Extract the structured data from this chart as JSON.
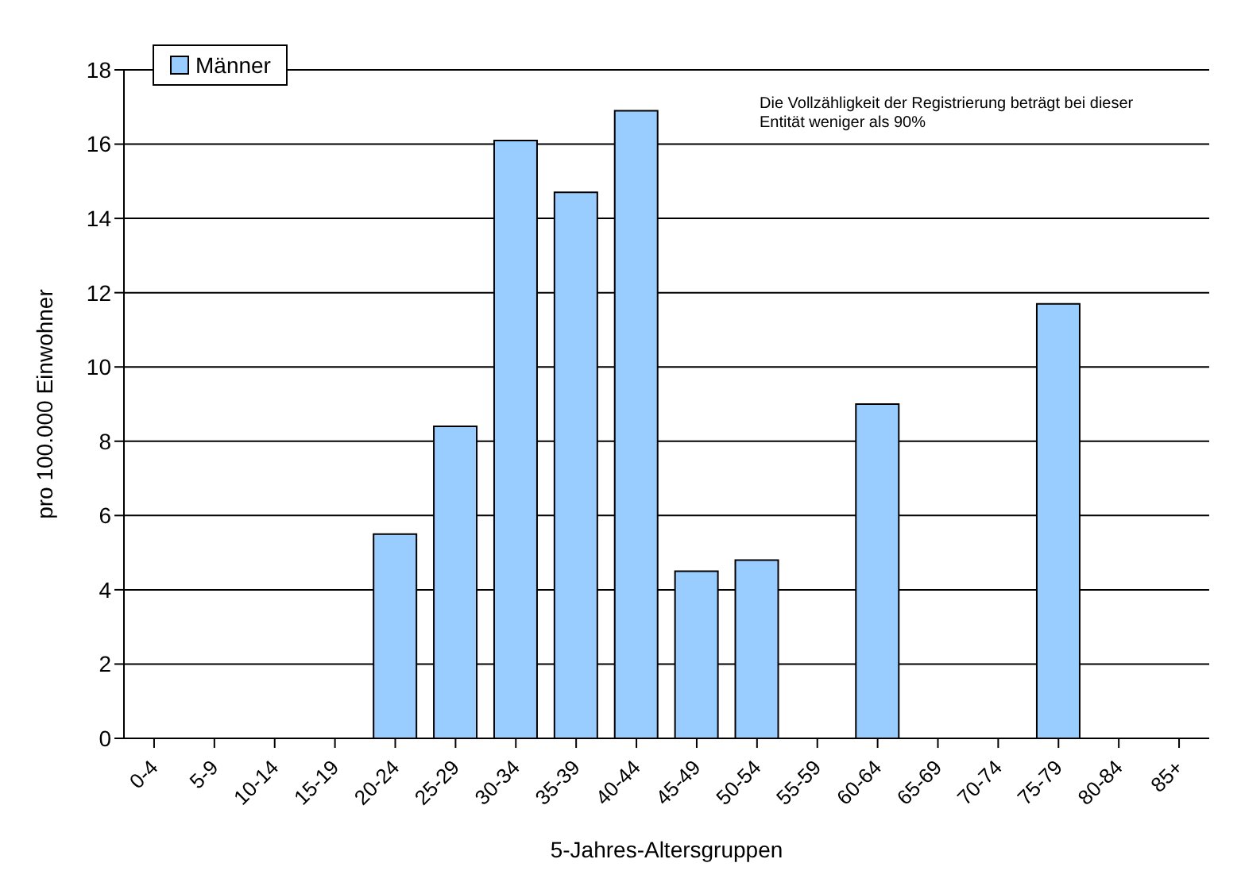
{
  "chart_data": {
    "type": "bar",
    "xlabel": "5-Jahres-Altersgruppen",
    "ylabel": "pro 100.000 Einwohner",
    "categories": [
      "0-4",
      "5-9",
      "10-14",
      "15-19",
      "20-24",
      "25-29",
      "30-34",
      "35-39",
      "40-44",
      "45-49",
      "50-54",
      "55-59",
      "60-64",
      "65-69",
      "70-74",
      "75-79",
      "80-84",
      "85+"
    ],
    "series": [
      {
        "name": "Männer",
        "color": "#99ccff",
        "values": [
          0,
          0,
          0,
          0,
          5.5,
          8.4,
          16.1,
          14.7,
          16.9,
          4.5,
          4.8,
          0,
          9.0,
          0,
          0,
          11.7,
          0,
          0
        ]
      }
    ],
    "ylim": [
      0,
      18
    ],
    "yticks": [
      0,
      2,
      4,
      6,
      8,
      10,
      12,
      14,
      16,
      18
    ],
    "grid": "y",
    "legend": "top left",
    "annotations": [
      "Die Vollzähligkeit der Registrierung beträgt bei dieser Entität weniger als 90%"
    ]
  }
}
